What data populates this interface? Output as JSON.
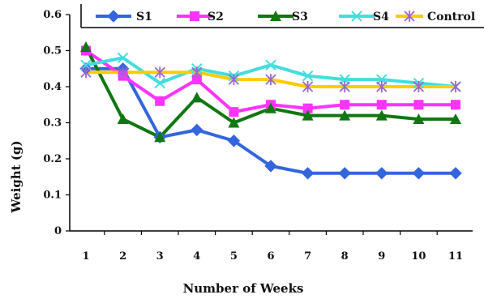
{
  "chart_data": {
    "type": "line",
    "xlabel": "Number of Weeks",
    "ylabel": "Weight (g)",
    "x": [
      1,
      2,
      3,
      4,
      5,
      6,
      7,
      8,
      9,
      10,
      11
    ],
    "x_tick_labels": [
      "1",
      "2",
      "3",
      "4",
      "5",
      "6",
      "7",
      "8",
      "9",
      "10",
      "11"
    ],
    "ylim": [
      0,
      0.6
    ],
    "y_ticks": [
      "0",
      "0.1",
      "0.2",
      "0.3",
      "0.4",
      "0.5",
      "0.6"
    ],
    "grid": false,
    "legend_position": "top",
    "series": [
      {
        "name": "S1",
        "color": "#3366dd",
        "marker": "diamond",
        "values": [
          0.45,
          0.45,
          0.26,
          0.28,
          0.25,
          0.18,
          0.16,
          0.16,
          0.16,
          0.16,
          0.16
        ]
      },
      {
        "name": "S2",
        "color": "#ff33ff",
        "marker": "square",
        "values": [
          0.5,
          0.43,
          0.36,
          0.42,
          0.33,
          0.35,
          0.34,
          0.35,
          0.35,
          0.35,
          0.35
        ]
      },
      {
        "name": "S3",
        "color": "#117711",
        "marker": "triangle",
        "values": [
          0.51,
          0.31,
          0.26,
          0.37,
          0.3,
          0.34,
          0.32,
          0.32,
          0.32,
          0.31,
          0.31
        ]
      },
      {
        "name": "S4",
        "color": "#44dddd",
        "marker": "x",
        "values": [
          0.46,
          0.48,
          0.41,
          0.45,
          0.43,
          0.46,
          0.43,
          0.42,
          0.42,
          0.41,
          0.4
        ]
      },
      {
        "name": "Control",
        "color": "#ffcc00",
        "marker": "asterisk",
        "values": [
          0.44,
          0.44,
          0.44,
          0.44,
          0.42,
          0.42,
          0.4,
          0.4,
          0.4,
          0.4,
          0.4
        ]
      }
    ]
  }
}
